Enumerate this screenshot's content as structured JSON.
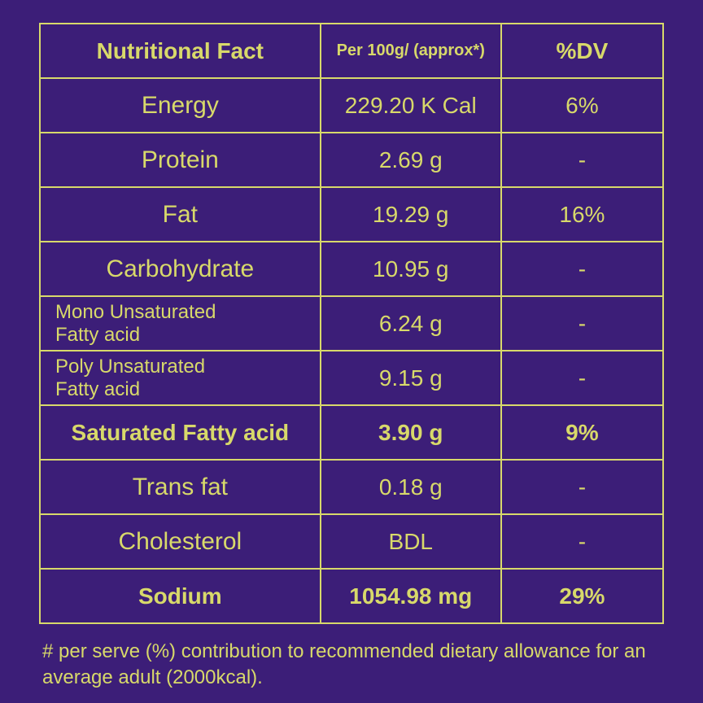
{
  "table": {
    "background_color": "#3c1e78",
    "border_color": "#d8d96a",
    "text_color": "#d8d96a",
    "headers": {
      "c1": "Nutritional Fact",
      "c2": "Per 100g/\n(approx*)",
      "c3": "%DV"
    },
    "rows": [
      {
        "name": "Energy",
        "per100g": "229.20 K Cal",
        "dv": "6%",
        "bold": false,
        "sub": false
      },
      {
        "name": "Protein",
        "per100g": "2.69 g",
        "dv": "-",
        "bold": false,
        "sub": false
      },
      {
        "name": "Fat",
        "per100g": "19.29 g",
        "dv": "16%",
        "bold": false,
        "sub": false
      },
      {
        "name": "Carbohydrate",
        "per100g": "10.95 g",
        "dv": "-",
        "bold": false,
        "sub": false
      },
      {
        "name": "Mono Unsaturated\nFatty acid",
        "per100g": "6.24 g",
        "dv": "-",
        "bold": false,
        "sub": true
      },
      {
        "name": "Poly Unsaturated\nFatty acid",
        "per100g": "9.15 g",
        "dv": "-",
        "bold": false,
        "sub": true
      },
      {
        "name": "Saturated Fatty acid",
        "per100g": "3.90 g",
        "dv": "9%",
        "bold": true,
        "sub": false
      },
      {
        "name": "Trans fat",
        "per100g": "0.18 g",
        "dv": "-",
        "bold": false,
        "sub": false
      },
      {
        "name": "Cholesterol",
        "per100g": "BDL",
        "dv": "-",
        "bold": false,
        "sub": false
      },
      {
        "name": "Sodium",
        "per100g": "1054.98 mg",
        "dv": "29%",
        "bold": true,
        "sub": false
      }
    ]
  },
  "footnote": "# per serve (%) contribution to recommended dietary allowance for an average adult (2000kcal)."
}
